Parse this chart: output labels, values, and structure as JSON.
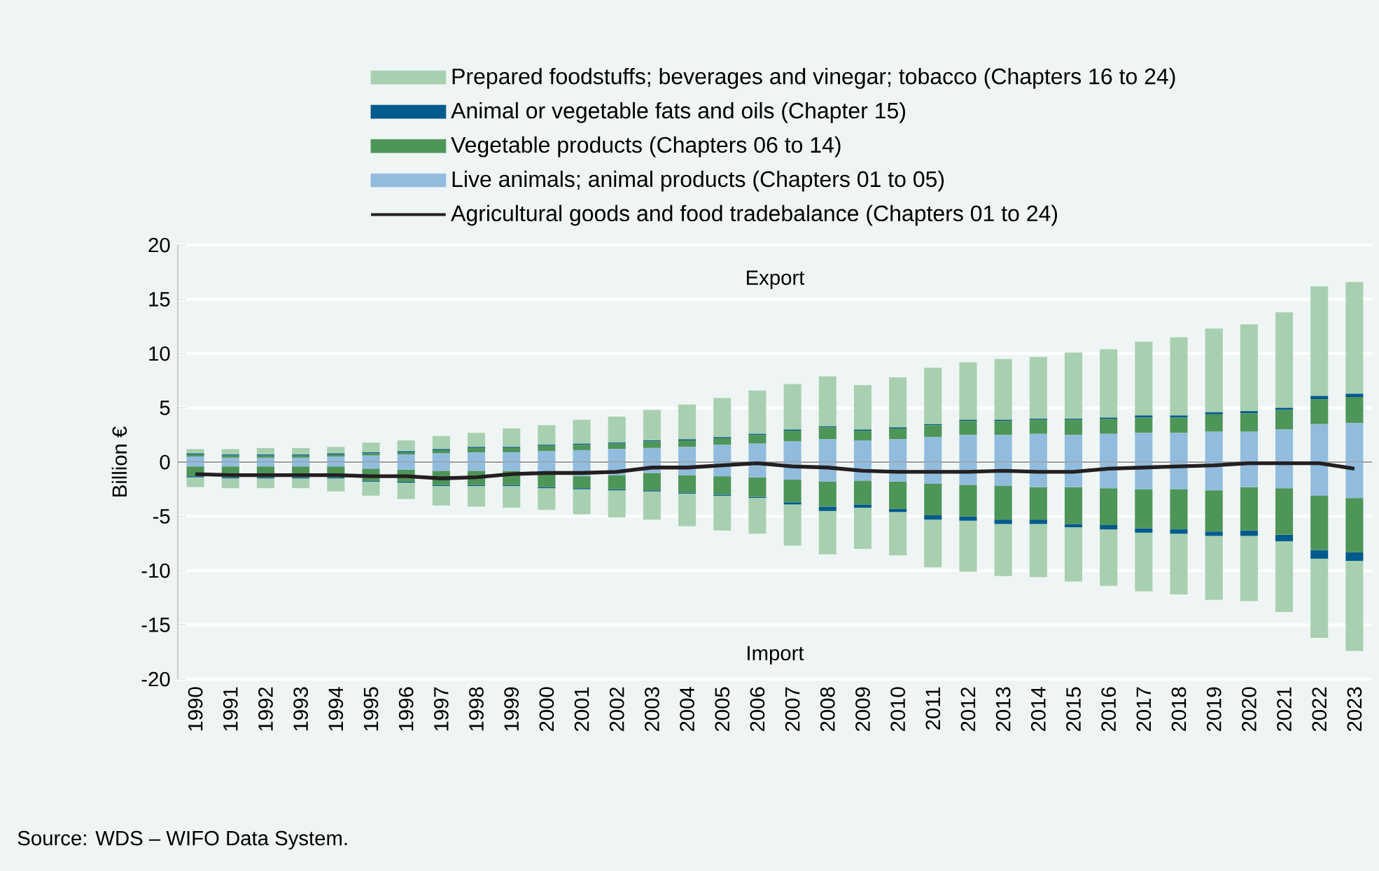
{
  "chart_data": {
    "type": "bar",
    "stacked": true,
    "ylabel": "Billion €",
    "categories": [
      "1990",
      "1991",
      "1992",
      "1993",
      "1994",
      "1995",
      "1996",
      "1997",
      "1998",
      "1999",
      "2000",
      "2001",
      "2002",
      "2003",
      "2004",
      "2005",
      "2006",
      "2007",
      "2008",
      "2009",
      "2010",
      "2011",
      "2012",
      "2013",
      "2014",
      "2015",
      "2016",
      "2017",
      "2018",
      "2019",
      "2020",
      "2021",
      "2022",
      "2023"
    ],
    "series": [
      {
        "name": "Live animals; animal products (Chapters 01 to 05)",
        "color": "#91bcdd",
        "values": [
          0.5,
          0.4,
          0.4,
          0.4,
          0.5,
          0.6,
          0.7,
          0.8,
          0.9,
          0.9,
          1.0,
          1.1,
          1.2,
          1.3,
          1.4,
          1.6,
          1.7,
          1.9,
          2.1,
          2.0,
          2.1,
          2.3,
          2.5,
          2.5,
          2.6,
          2.5,
          2.6,
          2.7,
          2.7,
          2.8,
          2.8,
          3.0,
          3.5,
          3.6
        ]
      },
      {
        "name": "Vegetable products (Chapters 06 to 14)",
        "color": "#4e9558",
        "values": [
          0.2,
          0.2,
          0.2,
          0.2,
          0.2,
          0.2,
          0.2,
          0.3,
          0.4,
          0.4,
          0.5,
          0.5,
          0.5,
          0.6,
          0.6,
          0.6,
          0.8,
          1.0,
          1.1,
          0.9,
          1.0,
          1.1,
          1.3,
          1.3,
          1.3,
          1.4,
          1.4,
          1.4,
          1.4,
          1.6,
          1.7,
          1.8,
          2.3,
          2.4
        ]
      },
      {
        "name": "Animal or vegetable fats and oils (Chapter 15)",
        "color": "#005a8c",
        "values": [
          0.1,
          0.1,
          0.1,
          0.1,
          0.1,
          0.1,
          0.1,
          0.1,
          0.1,
          0.1,
          0.1,
          0.1,
          0.1,
          0.1,
          0.1,
          0.1,
          0.1,
          0.1,
          0.1,
          0.1,
          0.1,
          0.1,
          0.1,
          0.1,
          0.1,
          0.1,
          0.1,
          0.2,
          0.2,
          0.2,
          0.2,
          0.2,
          0.3,
          0.3
        ]
      },
      {
        "name": "Prepared foodstuffs; beverages and vinegar; tobacco (Chapters 16 to 24)",
        "color": "#a8d0b0",
        "values": [
          0.4,
          0.5,
          0.6,
          0.6,
          0.6,
          0.9,
          1.0,
          1.2,
          1.3,
          1.7,
          1.8,
          2.2,
          2.4,
          2.8,
          3.2,
          3.6,
          4.0,
          4.2,
          4.6,
          4.1,
          4.6,
          5.2,
          5.3,
          5.6,
          5.7,
          6.1,
          6.3,
          6.8,
          7.2,
          7.7,
          8.0,
          8.8,
          10.1,
          10.3
        ]
      },
      {
        "color": "#91bcdd",
        "values": [
          -0.4,
          -0.4,
          -0.4,
          -0.4,
          -0.4,
          -0.6,
          -0.7,
          -0.8,
          -0.8,
          -0.8,
          -0.9,
          -1.3,
          -1.2,
          -1.0,
          -1.2,
          -1.3,
          -1.4,
          -1.6,
          -1.8,
          -1.7,
          -1.8,
          -2.0,
          -2.1,
          -2.2,
          -2.3,
          -2.3,
          -2.4,
          -2.5,
          -2.5,
          -2.6,
          -2.3,
          -2.4,
          -3.1,
          -3.3
        ]
      },
      {
        "color": "#4e9558",
        "values": [
          -0.9,
          -1.0,
          -1.0,
          -1.0,
          -1.0,
          -1.1,
          -1.1,
          -1.3,
          -1.3,
          -1.3,
          -1.4,
          -1.1,
          -1.3,
          -1.6,
          -1.6,
          -1.7,
          -1.8,
          -2.1,
          -2.3,
          -2.2,
          -2.5,
          -2.9,
          -2.9,
          -3.1,
          -3.0,
          -3.4,
          -3.4,
          -3.6,
          -3.7,
          -3.8,
          -4.0,
          -4.3,
          -5.0,
          -5.0
        ]
      },
      {
        "color": "#005a8c",
        "values": [
          -0.1,
          -0.1,
          -0.1,
          -0.1,
          -0.1,
          -0.1,
          -0.1,
          -0.1,
          -0.1,
          -0.1,
          -0.1,
          -0.1,
          -0.1,
          -0.1,
          -0.1,
          -0.1,
          -0.1,
          -0.2,
          -0.4,
          -0.3,
          -0.3,
          -0.4,
          -0.4,
          -0.4,
          -0.4,
          -0.3,
          -0.4,
          -0.4,
          -0.4,
          -0.4,
          -0.5,
          -0.6,
          -0.8,
          -0.8
        ]
      },
      {
        "color": "#a8d0b0",
        "values": [
          -0.9,
          -0.9,
          -0.9,
          -0.9,
          -1.2,
          -1.3,
          -1.5,
          -1.8,
          -1.9,
          -2.0,
          -2.0,
          -2.3,
          -2.5,
          -2.6,
          -3.0,
          -3.2,
          -3.3,
          -3.8,
          -4.0,
          -3.8,
          -4.0,
          -4.4,
          -4.7,
          -4.8,
          -4.9,
          -5.0,
          -5.2,
          -5.4,
          -5.6,
          -5.9,
          -6.0,
          -6.5,
          -7.3,
          -8.3
        ]
      },
      {
        "type": "line",
        "name": "Agricultural goods and food tradebalance (Chapters 01 to 24)",
        "color": "#231f20",
        "values": [
          -1.1,
          -1.2,
          -1.2,
          -1.2,
          -1.2,
          -1.3,
          -1.3,
          -1.5,
          -1.4,
          -1.1,
          -1.0,
          -1.0,
          -0.9,
          -0.5,
          -0.5,
          -0.3,
          -0.1,
          -0.4,
          -0.5,
          -0.8,
          -0.9,
          -0.9,
          -0.9,
          -0.8,
          -0.9,
          -0.9,
          -0.6,
          -0.5,
          -0.4,
          -0.3,
          -0.1,
          -0.1,
          -0.1,
          -0.6
        ]
      }
    ],
    "ylim": [
      -20,
      20
    ],
    "yticks": [
      -20,
      -15,
      -10,
      -5,
      0,
      5,
      10,
      15,
      20
    ],
    "grid": "y",
    "legend": "top",
    "annotations": [
      "Export",
      "Import",
      "Source: WDS – WIFO Data System."
    ]
  }
}
